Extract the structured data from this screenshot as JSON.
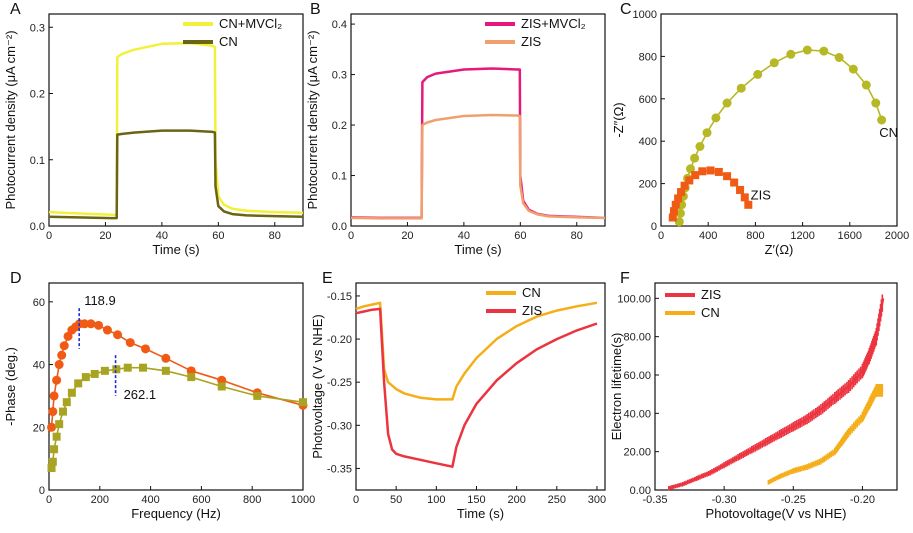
{
  "chart_data": [
    {
      "panel": "A",
      "type": "line",
      "xlabel": "Time (s)",
      "ylabel": "Photocurrent density (μA cm⁻²)",
      "xlim": [
        0,
        90
      ],
      "ylim": [
        0,
        0.32
      ],
      "xticks": [
        0,
        20,
        40,
        60,
        80
      ],
      "yticks": [
        0.0,
        0.1,
        0.2,
        0.3
      ],
      "legend": "top-right",
      "series": [
        {
          "name": "CN+MVCl₂",
          "color": "#f3f03a",
          "x": [
            0,
            10,
            22,
            24,
            24.2,
            26,
            30,
            40,
            50,
            58,
            58.8,
            59,
            60,
            62,
            65,
            70,
            80,
            90
          ],
          "y": [
            0.021,
            0.019,
            0.017,
            0.017,
            0.255,
            0.26,
            0.266,
            0.275,
            0.276,
            0.272,
            0.27,
            0.1,
            0.045,
            0.032,
            0.026,
            0.023,
            0.021,
            0.02
          ]
        },
        {
          "name": "CN",
          "color": "#6b6414",
          "x": [
            0,
            10,
            22,
            24,
            24.2,
            26,
            30,
            40,
            50,
            58,
            58.8,
            59,
            60,
            62,
            65,
            70,
            80,
            90
          ],
          "y": [
            0.014,
            0.013,
            0.012,
            0.012,
            0.138,
            0.139,
            0.141,
            0.144,
            0.144,
            0.142,
            0.141,
            0.06,
            0.03,
            0.022,
            0.018,
            0.016,
            0.015,
            0.014
          ]
        }
      ]
    },
    {
      "panel": "B",
      "type": "line",
      "xlabel": "Time (s)",
      "ylabel": "Photocurrent density (μA cm⁻²)",
      "xlim": [
        0,
        90
      ],
      "ylim": [
        0,
        0.42
      ],
      "xticks": [
        0,
        20,
        40,
        60,
        80
      ],
      "yticks": [
        0.0,
        0.1,
        0.2,
        0.3,
        0.4
      ],
      "legend": "top-right",
      "series": [
        {
          "name": "ZIS+MVCl₂",
          "color": "#e5197c",
          "x": [
            0,
            10,
            24,
            25,
            25.3,
            27,
            30,
            40,
            50,
            59,
            59.8,
            60,
            61,
            63,
            66,
            70,
            80,
            90
          ],
          "y": [
            0.017,
            0.016,
            0.016,
            0.016,
            0.285,
            0.295,
            0.302,
            0.31,
            0.312,
            0.31,
            0.31,
            0.1,
            0.05,
            0.032,
            0.024,
            0.02,
            0.018,
            0.016
          ]
        },
        {
          "name": "ZIS",
          "color": "#f0a06e",
          "x": [
            0,
            10,
            24,
            25,
            25.3,
            27,
            30,
            40,
            50,
            59,
            59.8,
            60,
            61,
            63,
            66,
            70,
            80,
            90
          ],
          "y": [
            0.016,
            0.015,
            0.015,
            0.015,
            0.2,
            0.205,
            0.21,
            0.218,
            0.22,
            0.219,
            0.218,
            0.08,
            0.045,
            0.03,
            0.023,
            0.019,
            0.017,
            0.016
          ]
        }
      ]
    },
    {
      "panel": "C",
      "type": "scatter",
      "xlabel": "Z′(Ω)",
      "ylabel": "-Z″(Ω)",
      "xlim": [
        0,
        2000
      ],
      "ylim": [
        0,
        1000
      ],
      "xticks": [
        0,
        400,
        800,
        1200,
        1600,
        2000
      ],
      "yticks": [
        0,
        200,
        400,
        600,
        800,
        1000
      ],
      "annotations": [
        "CN",
        "ZIS"
      ],
      "series": [
        {
          "name": "CN",
          "color": "#b7b825",
          "x": [
            155,
            165,
            175,
            190,
            205,
            225,
            250,
            285,
            330,
            390,
            465,
            560,
            680,
            820,
            960,
            1100,
            1240,
            1380,
            1510,
            1630,
            1740,
            1820,
            1870
          ],
          "y": [
            20,
            60,
            100,
            140,
            180,
            225,
            270,
            320,
            375,
            440,
            510,
            580,
            650,
            715,
            770,
            810,
            830,
            825,
            795,
            740,
            665,
            580,
            500
          ]
        },
        {
          "name": "ZIS",
          "color": "#f05a14",
          "x": [
            100,
            110,
            125,
            145,
            170,
            200,
            240,
            290,
            350,
            420,
            490,
            560,
            620,
            670,
            710,
            740
          ],
          "y": [
            40,
            70,
            100,
            130,
            160,
            190,
            215,
            240,
            258,
            262,
            255,
            235,
            205,
            170,
            135,
            100
          ]
        }
      ]
    },
    {
      "panel": "D",
      "type": "scatter",
      "xlabel": "Frequency (Hz)",
      "ylabel": "-Phase (deg.)",
      "xlim": [
        0,
        1000
      ],
      "ylim": [
        0,
        66
      ],
      "xticks": [
        0,
        200,
        400,
        600,
        800,
        1000
      ],
      "yticks": [
        0,
        20,
        40,
        60
      ],
      "annotations": [
        {
          "text": "118.9",
          "color": "#f05a14"
        },
        {
          "text": "262.1",
          "color": "#8c8a12"
        }
      ],
      "peaks": [
        118.9,
        262.1
      ],
      "series": [
        {
          "name": "ZIS",
          "color": "#f05a14",
          "x": [
            10,
            15,
            20,
            30,
            40,
            50,
            60,
            75,
            90,
            105,
            120,
            140,
            165,
            195,
            230,
            270,
            320,
            380,
            460,
            560,
            680,
            820,
            1000
          ],
          "y": [
            20,
            25,
            30,
            35,
            40,
            43,
            46,
            49,
            51,
            52,
            53,
            53,
            53,
            52.5,
            51,
            49.5,
            47,
            45,
            42,
            38,
            35,
            31,
            27
          ]
        },
        {
          "name": "CN",
          "color": "#a8a421",
          "x": [
            10,
            15,
            20,
            30,
            40,
            55,
            70,
            90,
            115,
            145,
            180,
            220,
            265,
            310,
            370,
            460,
            560,
            680,
            820,
            1000
          ],
          "y": [
            7,
            9,
            13,
            17,
            21,
            25,
            28,
            31,
            34,
            36,
            37,
            38,
            38.5,
            39,
            39,
            38,
            36,
            33,
            30,
            28
          ]
        }
      ]
    },
    {
      "panel": "E",
      "type": "line",
      "xlabel": "Time (s)",
      "ylabel": "Photovoltage (V vs NHE)",
      "xlim": [
        0,
        310
      ],
      "ylim": [
        -0.375,
        -0.135
      ],
      "xticks": [
        0,
        50,
        100,
        150,
        200,
        250,
        300
      ],
      "yticks": [
        -0.35,
        -0.3,
        -0.25,
        -0.2,
        -0.15
      ],
      "legend": "top-right",
      "series": [
        {
          "name": "CN",
          "color": "#f5ae19",
          "x": [
            0,
            10,
            20,
            30,
            35,
            40,
            50,
            60,
            80,
            100,
            120,
            125,
            135,
            150,
            175,
            200,
            225,
            250,
            275,
            300
          ],
          "y": [
            -0.165,
            -0.162,
            -0.16,
            -0.158,
            -0.235,
            -0.25,
            -0.258,
            -0.263,
            -0.268,
            -0.27,
            -0.27,
            -0.255,
            -0.24,
            -0.222,
            -0.2,
            -0.185,
            -0.174,
            -0.167,
            -0.162,
            -0.158
          ]
        },
        {
          "name": "ZIS",
          "color": "#ec3440",
          "x": [
            0,
            10,
            20,
            30,
            35,
            40,
            45,
            50,
            60,
            80,
            100,
            120,
            125,
            135,
            150,
            175,
            200,
            225,
            250,
            275,
            300
          ],
          "y": [
            -0.17,
            -0.168,
            -0.166,
            -0.165,
            -0.25,
            -0.31,
            -0.328,
            -0.333,
            -0.336,
            -0.34,
            -0.344,
            -0.348,
            -0.325,
            -0.3,
            -0.275,
            -0.248,
            -0.228,
            -0.212,
            -0.2,
            -0.19,
            -0.182
          ]
        }
      ]
    },
    {
      "panel": "F",
      "type": "line",
      "xlabel": "Photovoltage(V vs NHE)",
      "ylabel": "Electron lifetime(s)",
      "xlim": [
        -0.35,
        -0.175
      ],
      "ylim": [
        0,
        108
      ],
      "xticks": [
        -0.35,
        -0.3,
        -0.25,
        -0.2
      ],
      "yticks": [
        0,
        20,
        40,
        60,
        80,
        100
      ],
      "legend": "top-left",
      "series": [
        {
          "name": "ZIS",
          "color": "#ec3440",
          "x": [
            -0.34,
            -0.33,
            -0.32,
            -0.31,
            -0.3,
            -0.29,
            -0.28,
            -0.27,
            -0.26,
            -0.25,
            -0.24,
            -0.23,
            -0.22,
            -0.21,
            -0.2,
            -0.195,
            -0.19,
            -0.185
          ],
          "y": [
            1,
            3,
            6,
            9,
            13,
            17,
            21,
            25,
            29,
            33,
            37,
            42,
            48,
            54,
            62,
            70,
            80,
            100
          ]
        },
        {
          "name": "CN",
          "color": "#f5ae19",
          "x": [
            -0.268,
            -0.26,
            -0.25,
            -0.24,
            -0.23,
            -0.22,
            -0.215,
            -0.21,
            -0.2,
            -0.195,
            -0.19,
            -0.185
          ],
          "y": [
            4,
            7,
            10,
            12,
            15,
            20,
            25,
            30,
            38,
            45,
            52,
            52
          ]
        }
      ]
    }
  ]
}
